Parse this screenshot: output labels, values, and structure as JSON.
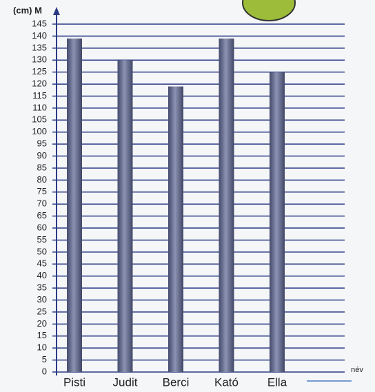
{
  "chart_data": {
    "type": "bar",
    "y_label": "(cm) M",
    "x_label": "név",
    "categories": [
      "Pisti",
      "Judit",
      "Berci",
      "Kató",
      "Ella"
    ],
    "values": [
      139,
      130,
      119,
      139,
      125
    ],
    "color": "#5c6592",
    "ylim": [
      0,
      145
    ],
    "yticks": [
      0,
      5,
      10,
      15,
      20,
      25,
      30,
      35,
      40,
      45,
      50,
      55,
      60,
      65,
      70,
      75,
      80,
      85,
      90,
      95,
      100,
      105,
      110,
      115,
      120,
      125,
      130,
      135,
      140,
      145
    ],
    "grid": true
  }
}
